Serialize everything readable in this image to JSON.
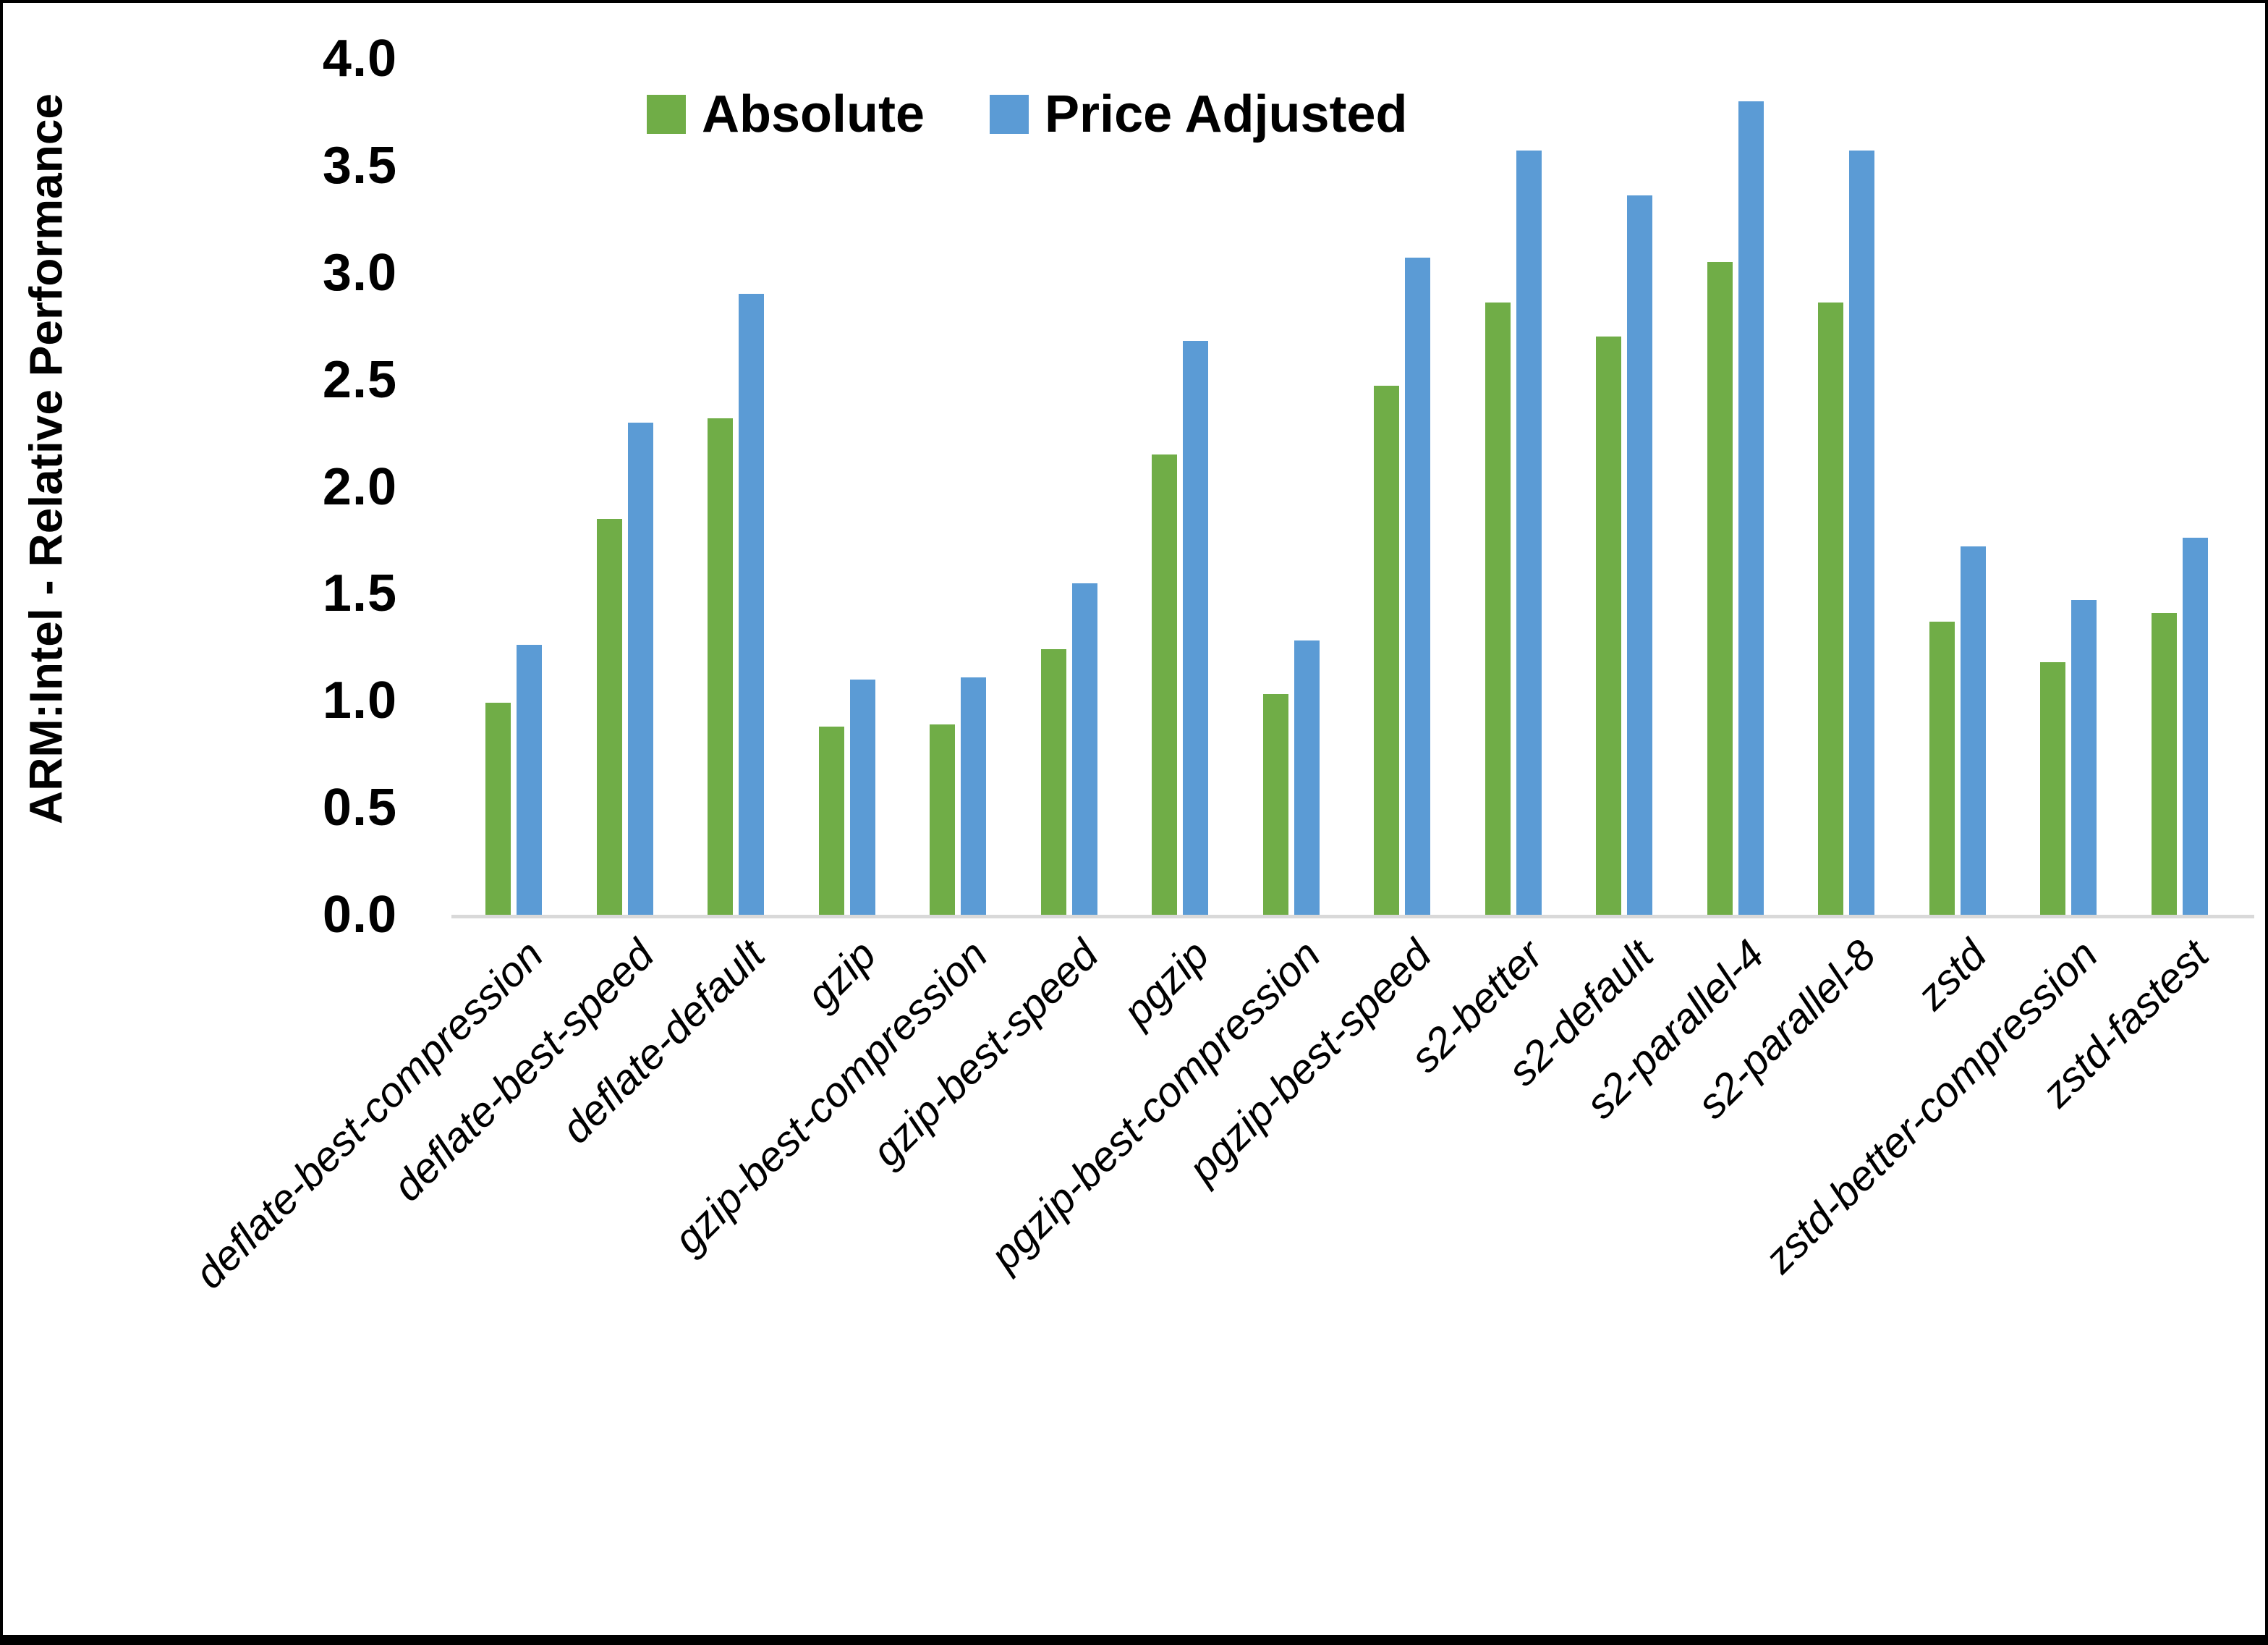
{
  "chart_data": {
    "type": "bar",
    "title": "",
    "ylabel": "ARM:Intel - Relative Performance",
    "xlabel": "",
    "ylim": [
      0.0,
      4.0
    ],
    "yticks": [
      "0.0",
      "0.5",
      "1.0",
      "1.5",
      "2.0",
      "2.5",
      "3.0",
      "3.5",
      "4.0"
    ],
    "grid": false,
    "legend_position": "top-center",
    "categories": [
      "deflate-best-compression",
      "deflate-best-speed",
      "deflate-default",
      "gzip",
      "gzip-best-compression",
      "gzip-best-speed",
      "pgzip",
      "pgzip-best-compression",
      "pgzip-best-speed",
      "s2-better",
      "s2-default",
      "s2-parallel-4",
      "s2-parallel-8",
      "zstd",
      "zstd-better-compression",
      "zstd-fastest"
    ],
    "series": [
      {
        "name": "Absolute",
        "color": "#70AD47",
        "values": [
          0.99,
          1.85,
          2.32,
          0.88,
          0.89,
          1.24,
          2.15,
          1.03,
          2.47,
          2.86,
          2.7,
          3.05,
          2.86,
          1.37,
          1.18,
          1.41
        ]
      },
      {
        "name": "Price Adjusted",
        "color": "#5B9BD5",
        "values": [
          1.26,
          2.3,
          2.9,
          1.1,
          1.11,
          1.55,
          2.68,
          1.28,
          3.07,
          3.57,
          3.36,
          3.8,
          3.57,
          1.72,
          1.47,
          1.76
        ]
      }
    ]
  }
}
